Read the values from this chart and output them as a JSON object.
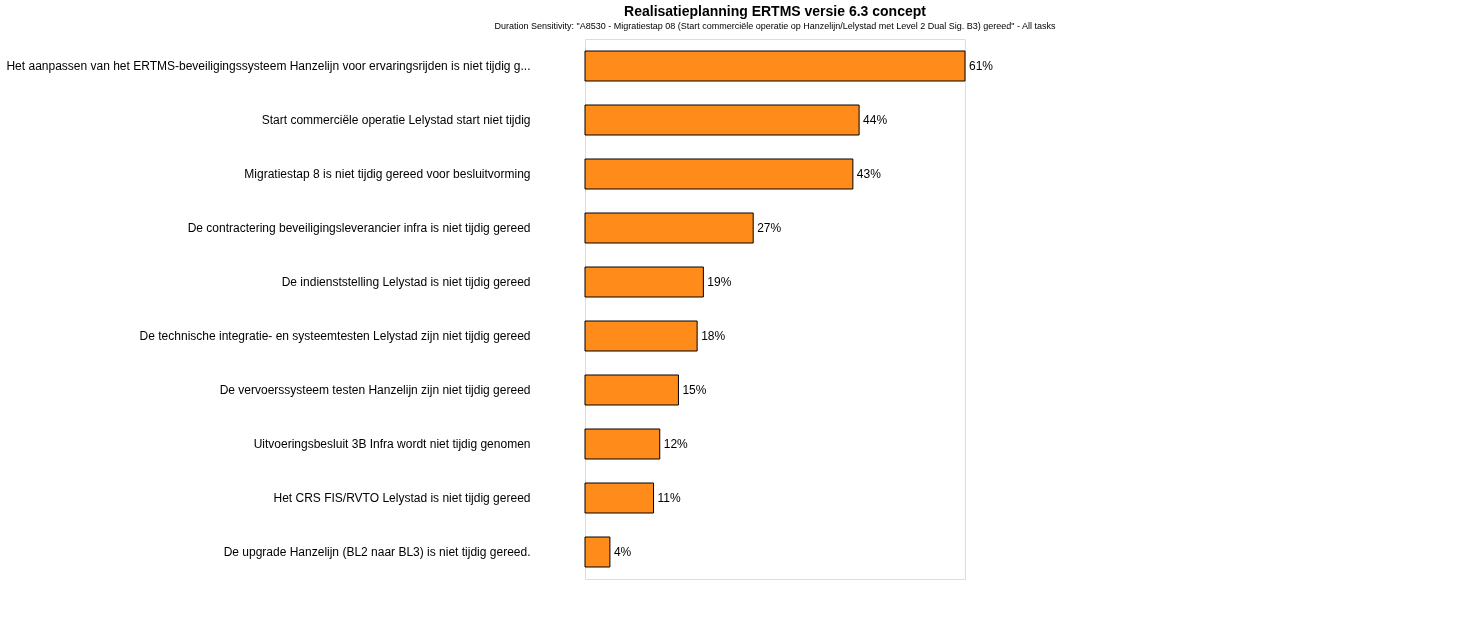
{
  "chart_data": {
    "type": "bar",
    "orientation": "horizontal",
    "title": "Realisatieplanning ERTMS versie 6.3 concept",
    "subtitle": "Duration Sensitivity: \"A8530 - Migratiestap 08 (Start commerciële operatie op Hanzelijn/Lelystad met Level 2 Dual Sig.  B3) gereed\" - All tasks",
    "categories": [
      "Het aanpassen van het ERTMS-beveiligingssysteem Hanzelijn voor ervaringsrijden is niet tijdig g...",
      "Start commerciële operatie Lelystad start niet tijdig",
      "Migratiestap 8 is niet tijdig gereed voor besluitvorming",
      "De contractering beveiligingsleverancier infra is niet tijdig gereed",
      "De indienststelling Lelystad is niet tijdig gereed",
      "De technische integratie- en systeemtesten Lelystad zijn niet tijdig gereed",
      "De vervoerssysteem testen Hanzelijn zijn niet tijdig gereed",
      "Uitvoeringsbesluit 3B Infra wordt niet tijdig genomen",
      "Het CRS FIS/RVTO Lelystad is niet tijdig gereed",
      "De upgrade Hanzelijn (BL2 naar BL3) is niet tijdig gereed."
    ],
    "values": [
      61,
      44,
      43,
      27,
      19,
      18,
      15,
      12,
      11,
      4
    ],
    "value_labels": [
      "61%",
      "44%",
      "43%",
      "27%",
      "19%",
      "18%",
      "15%",
      "12%",
      "11%",
      "4%"
    ],
    "color": "#ff8c1a",
    "grid": false,
    "tick_labels": "y"
  }
}
